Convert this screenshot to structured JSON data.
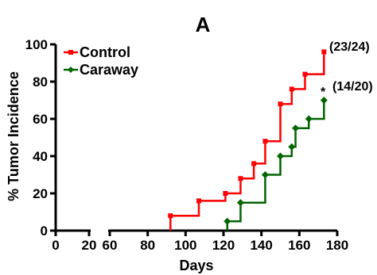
{
  "chart_data": {
    "type": "line",
    "subtype": "step",
    "title": "A",
    "xlabel": "Days",
    "ylabel": "% Tumor Incidence",
    "xlim": [
      0,
      180
    ],
    "ylim": [
      0,
      100
    ],
    "x_axis_break": [
      20,
      60
    ],
    "xticks": [
      0,
      20,
      60,
      80,
      100,
      120,
      140,
      160,
      180
    ],
    "yticks": [
      0,
      20,
      40,
      60,
      80,
      100
    ],
    "grid": false,
    "legend": "top-left",
    "series": [
      {
        "name": "Control",
        "color": "#ff0000",
        "marker": "square",
        "x": [
          92,
          107,
          121,
          129,
          136,
          142,
          150,
          156,
          163,
          173
        ],
        "y": [
          8,
          16,
          20,
          28,
          36,
          48,
          68,
          76,
          84,
          96
        ],
        "end_label": "(23/24)"
      },
      {
        "name": "Caraway",
        "color": "#006400",
        "marker": "diamond",
        "x": [
          122,
          129,
          142,
          150,
          156,
          158,
          165,
          173
        ],
        "y": [
          5,
          15,
          30,
          40,
          45,
          55,
          60,
          70
        ],
        "end_label": "(14/20)",
        "significance": "*"
      }
    ]
  }
}
